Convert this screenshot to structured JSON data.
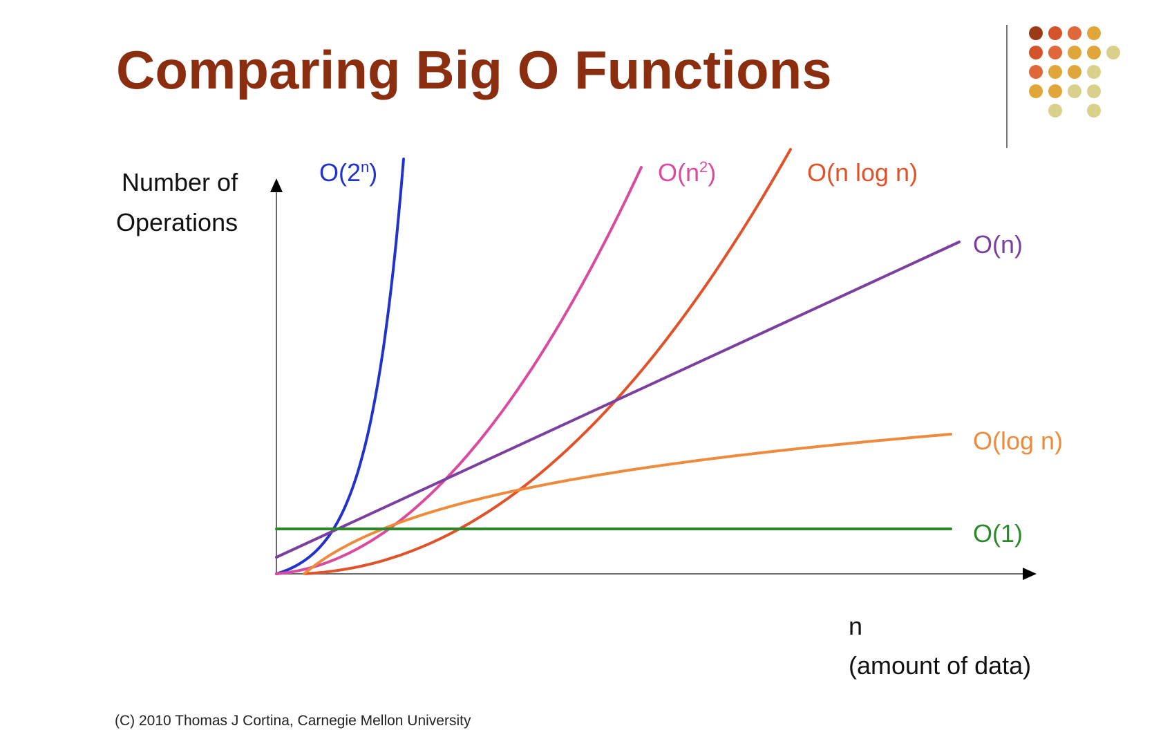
{
  "slide": {
    "title": "Comparing Big O Functions",
    "copyright": "(C) 2010 Thomas J Cortina, Carnegie Mellon University"
  },
  "colors": {
    "title": "#8B2E10",
    "divider": "#777777",
    "axis": "#6a6a6a",
    "text": "#111111",
    "dot_colors": [
      "#9C3A16",
      "#D4532A",
      "#E0673A",
      "#E0A63A",
      "#D9D08C"
    ]
  },
  "chart_data": {
    "type": "line",
    "title": "Comparing Big O Functions",
    "ylabel_lines": [
      "Number of",
      "Operations"
    ],
    "xlabel_lines": [
      "n",
      "(amount of data)"
    ],
    "grid": false,
    "legend": "inline-labels-at-line-ends",
    "series": [
      {
        "name": "O(2^n)",
        "label_base": "O(2",
        "label_sup": "n",
        "label_tail": ")",
        "color": "#2233CC",
        "fn": "exp"
      },
      {
        "name": "O(n^2)",
        "label_base": "O(n",
        "label_sup": "2",
        "label_tail": ")",
        "color": "#D94B9E",
        "fn": "quadratic"
      },
      {
        "name": "O(n log n)",
        "label_base": "O(n log n)",
        "color": "#E0522A",
        "fn": "nlogn"
      },
      {
        "name": "O(n)",
        "label_base": "O(n)",
        "color": "#7B3FA0",
        "fn": "linear"
      },
      {
        "name": "O(log n)",
        "label_base": "O(log n)",
        "color": "#EE8A3C",
        "fn": "log"
      },
      {
        "name": "O(1)",
        "label_base": "O(1)",
        "color": "#2A8A2A",
        "fn": "constant"
      }
    ]
  }
}
